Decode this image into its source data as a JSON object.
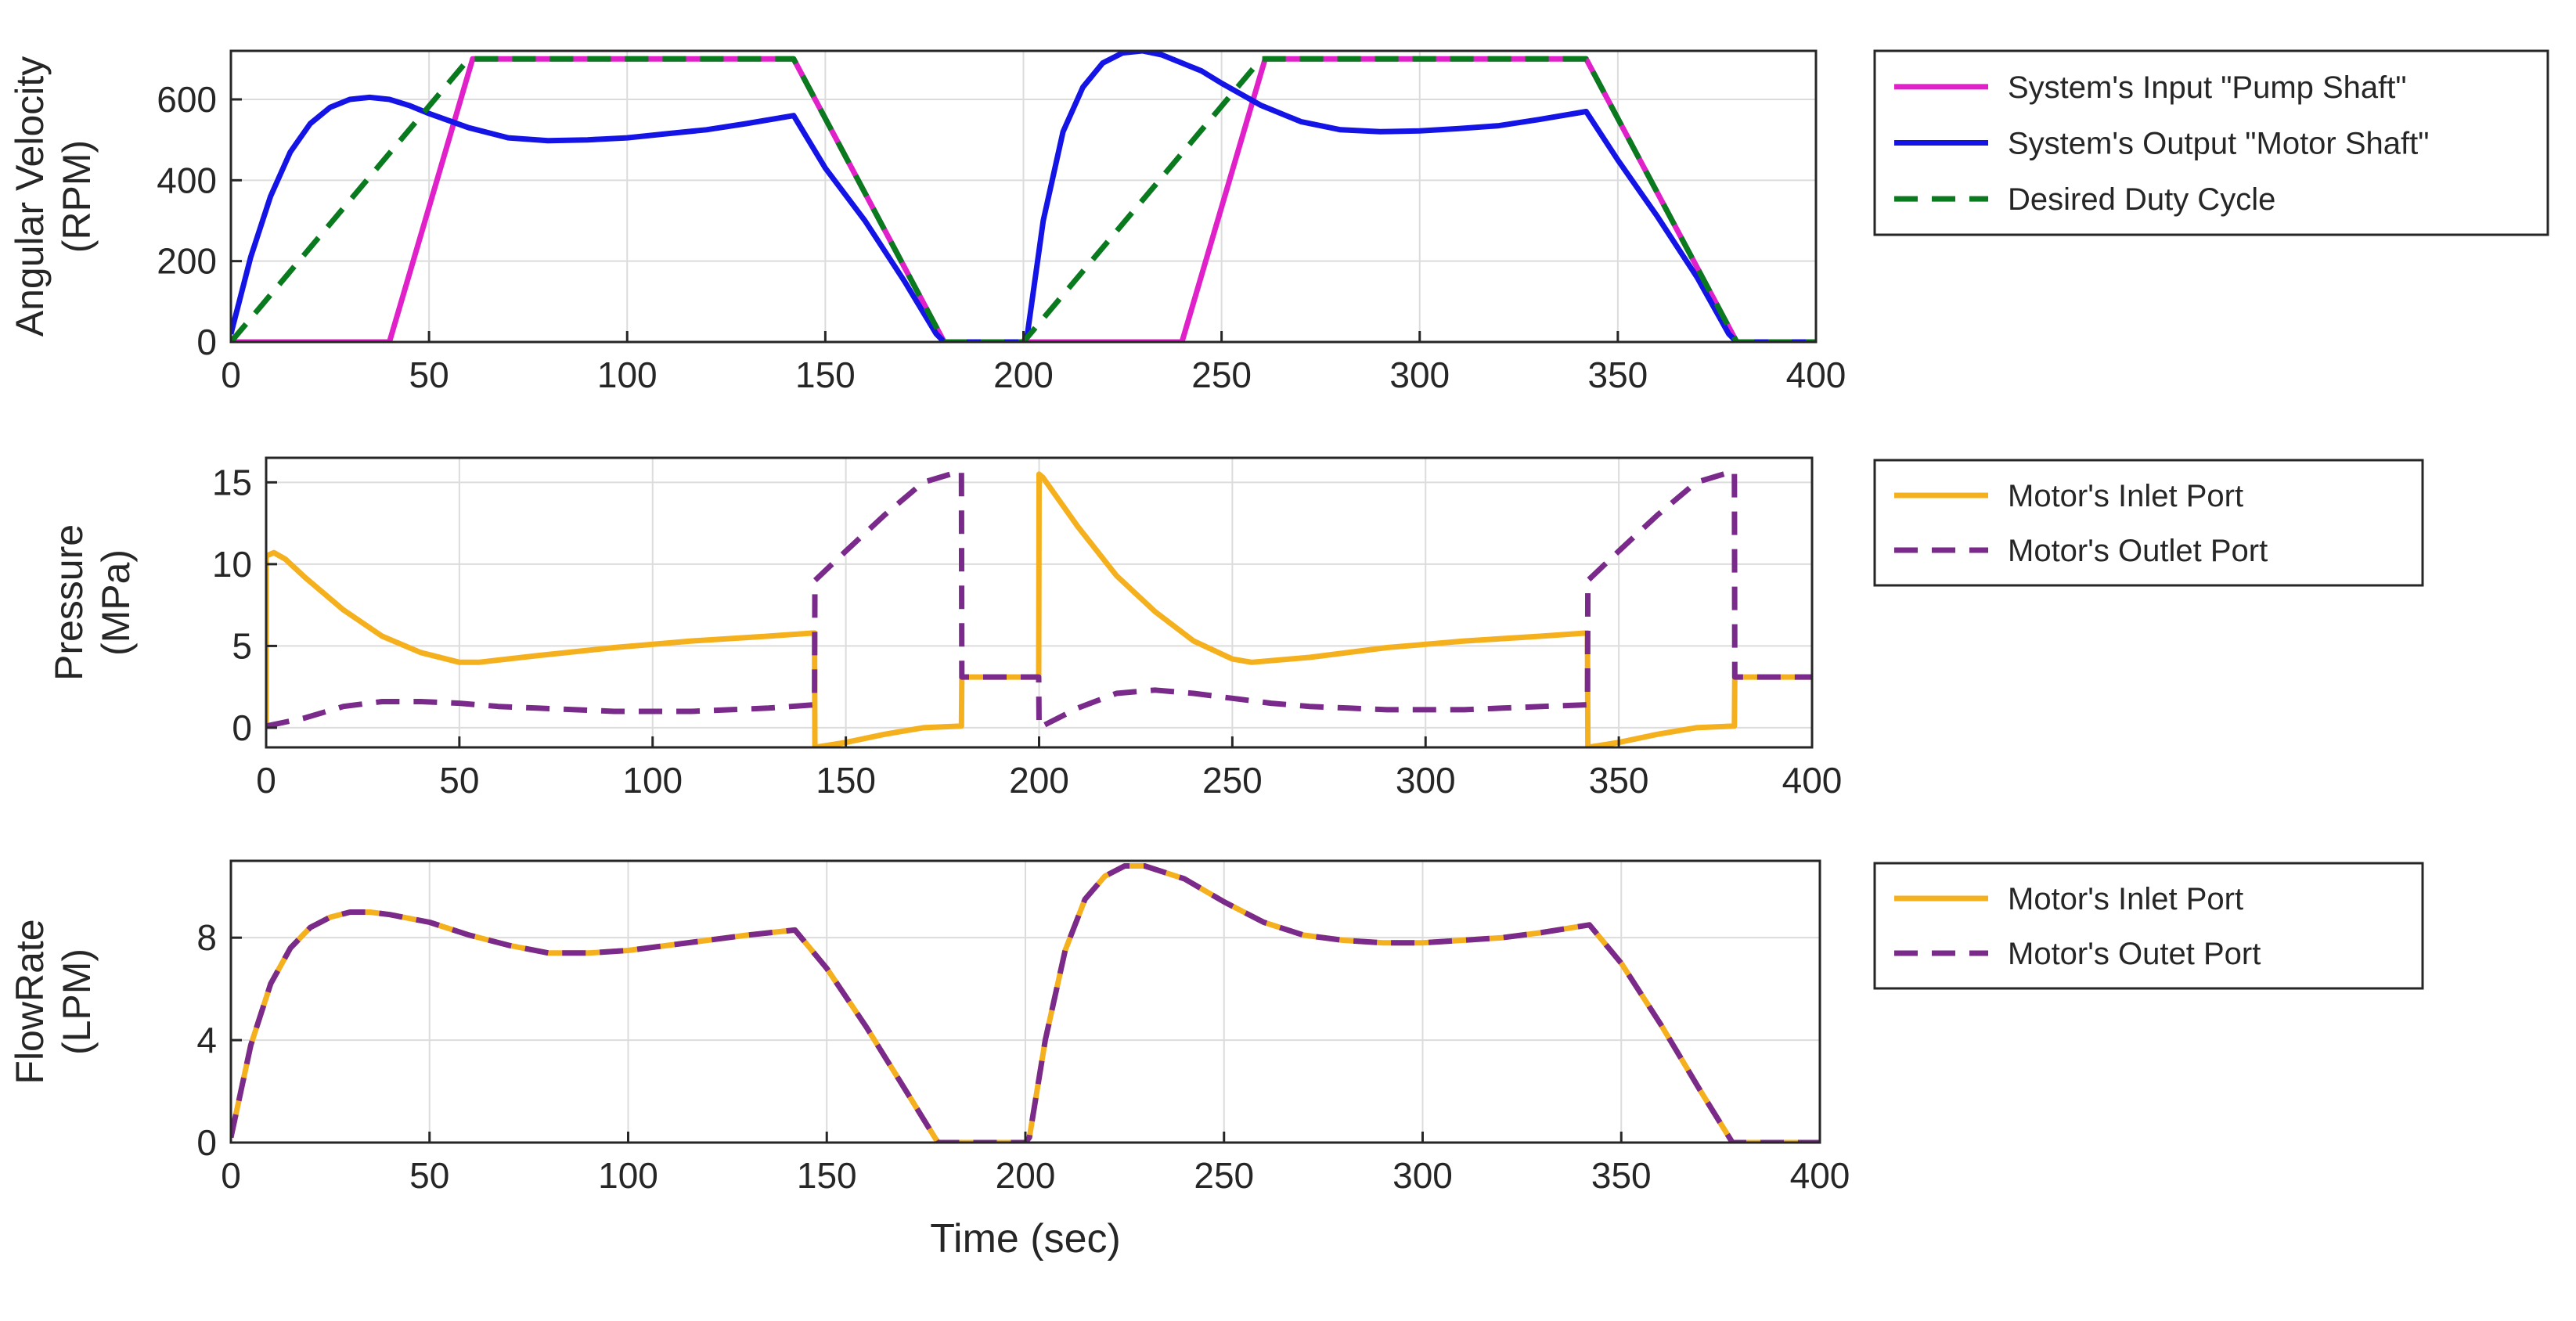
{
  "chart_data": [
    {
      "type": "line",
      "ylabel_line1": "Angular Velocity",
      "ylabel_line2": "(RPM)",
      "xlim": [
        0,
        400
      ],
      "ylim": [
        0,
        720
      ],
      "xticks": [
        0,
        50,
        100,
        150,
        200,
        250,
        300,
        350,
        400
      ],
      "yticks": [
        0,
        200,
        400,
        600
      ],
      "grid": true,
      "legend": "outside-right",
      "series": [
        {
          "name": "System's Input \"Pump Shaft\"",
          "color": "#e020c8",
          "style": "solid",
          "x": [
            0,
            40,
            61,
            142,
            180,
            200,
            240,
            261,
            342,
            380,
            400
          ],
          "y": [
            0,
            0,
            700,
            700,
            0,
            0,
            0,
            700,
            700,
            0,
            0
          ]
        },
        {
          "name": "System's Output \"Motor Shaft\"",
          "color": "#1414e6",
          "style": "solid",
          "x": [
            0,
            5,
            10,
            15,
            20,
            25,
            30,
            35,
            40,
            45,
            50,
            60,
            70,
            80,
            90,
            100,
            110,
            120,
            130,
            142,
            150,
            160,
            170,
            178,
            180,
            190,
            200,
            201,
            205,
            210,
            215,
            220,
            225,
            230,
            235,
            240,
            245,
            250,
            260,
            270,
            280,
            290,
            300,
            310,
            320,
            330,
            342,
            350,
            360,
            370,
            378,
            380,
            390,
            400
          ],
          "y": [
            20,
            210,
            360,
            470,
            540,
            580,
            600,
            605,
            600,
            585,
            565,
            530,
            505,
            498,
            500,
            505,
            515,
            525,
            540,
            560,
            430,
            300,
            150,
            20,
            0,
            0,
            0,
            20,
            300,
            520,
            630,
            690,
            715,
            720,
            710,
            690,
            670,
            640,
            585,
            545,
            525,
            520,
            522,
            528,
            535,
            550,
            570,
            450,
            310,
            160,
            20,
            0,
            0,
            0
          ]
        },
        {
          "name": "Desired Duty Cycle",
          "color": "#0a7a1e",
          "style": "dashed",
          "x": [
            0,
            60,
            142,
            180,
            200,
            260,
            342,
            380,
            400
          ],
          "y": [
            0,
            700,
            700,
            0,
            0,
            700,
            700,
            0,
            0
          ]
        }
      ]
    },
    {
      "type": "line",
      "ylabel_line1": "Pressure",
      "ylabel_line2": "(MPa)",
      "xlim": [
        0,
        400
      ],
      "ylim": [
        -1.2,
        16.5
      ],
      "xticks": [
        0,
        50,
        100,
        150,
        200,
        250,
        300,
        350,
        400
      ],
      "yticks": [
        0,
        5,
        10,
        15
      ],
      "grid": true,
      "legend": "outside-right",
      "series": [
        {
          "name": "Motor's Inlet Port",
          "color": "#f5b01e",
          "style": "solid",
          "x": [
            0,
            0.01,
            2,
            5,
            10,
            20,
            30,
            40,
            50,
            55,
            70,
            90,
            110,
            130,
            141.9,
            142,
            150,
            160,
            170,
            179.9,
            180,
            190,
            199.9,
            200,
            201,
            210,
            220,
            230,
            240,
            250,
            255,
            270,
            290,
            310,
            330,
            341.9,
            342,
            350,
            360,
            370,
            379.9,
            380,
            390,
            400
          ],
          "y": [
            0,
            10.5,
            10.7,
            10.3,
            9.2,
            7.2,
            5.6,
            4.6,
            4.0,
            4.0,
            4.4,
            4.9,
            5.3,
            5.6,
            5.8,
            -1.2,
            -0.9,
            -0.4,
            0.0,
            0.1,
            3.1,
            3.1,
            3.1,
            15.5,
            15.3,
            12.3,
            9.3,
            7.1,
            5.3,
            4.2,
            4.0,
            4.3,
            4.9,
            5.3,
            5.6,
            5.8,
            -1.2,
            -0.9,
            -0.4,
            0.0,
            0.1,
            3.1,
            3.1,
            3.1
          ]
        },
        {
          "name": "Motor's Outlet Port",
          "color": "#7a2a8a",
          "style": "dashed",
          "x": [
            0,
            10,
            20,
            30,
            40,
            50,
            60,
            70,
            80,
            90,
            100,
            110,
            120,
            130,
            141.9,
            142,
            150,
            160,
            170,
            179.9,
            180,
            190,
            199.9,
            200,
            210,
            220,
            230,
            240,
            250,
            260,
            270,
            280,
            290,
            300,
            310,
            320,
            330,
            341.9,
            342,
            350,
            360,
            370,
            379.9,
            380,
            390,
            400
          ],
          "y": [
            0.1,
            0.6,
            1.3,
            1.6,
            1.6,
            1.5,
            1.3,
            1.2,
            1.1,
            1.0,
            1.0,
            1.0,
            1.1,
            1.2,
            1.4,
            9.0,
            10.8,
            13.0,
            15.0,
            15.7,
            3.1,
            3.1,
            3.1,
            0.0,
            1.2,
            2.1,
            2.3,
            2.1,
            1.8,
            1.5,
            1.3,
            1.2,
            1.1,
            1.1,
            1.1,
            1.2,
            1.3,
            1.4,
            9.0,
            10.8,
            13.0,
            15.0,
            15.7,
            3.1,
            3.1,
            3.1
          ]
        }
      ]
    },
    {
      "type": "line",
      "ylabel_line1": "FlowRate",
      "ylabel_line2": "(LPM)",
      "xlabel": "Time (sec)",
      "xlim": [
        0,
        400
      ],
      "ylim": [
        0,
        11
      ],
      "xticks": [
        0,
        50,
        100,
        150,
        200,
        250,
        300,
        350,
        400
      ],
      "yticks": [
        0,
        4,
        8
      ],
      "grid": true,
      "legend": "outside-right",
      "series": [
        {
          "name": "Motor's Inlet Port",
          "color": "#f5b01e",
          "style": "solid",
          "x": [
            0,
            5,
            10,
            15,
            20,
            25,
            30,
            35,
            40,
            50,
            60,
            70,
            80,
            90,
            100,
            110,
            120,
            130,
            142,
            150,
            160,
            170,
            178,
            180,
            190,
            200,
            201,
            205,
            210,
            215,
            220,
            225,
            230,
            240,
            250,
            260,
            270,
            280,
            290,
            300,
            310,
            320,
            330,
            342,
            350,
            360,
            370,
            378,
            380,
            390,
            400
          ],
          "y": [
            0.2,
            3.8,
            6.2,
            7.6,
            8.4,
            8.8,
            9.0,
            9.0,
            8.9,
            8.6,
            8.1,
            7.7,
            7.4,
            7.4,
            7.5,
            7.7,
            7.9,
            8.1,
            8.3,
            6.8,
            4.5,
            2.0,
            0.0,
            0.0,
            0.0,
            0.0,
            0.2,
            4.0,
            7.5,
            9.5,
            10.4,
            10.8,
            10.8,
            10.3,
            9.4,
            8.6,
            8.1,
            7.9,
            7.8,
            7.8,
            7.9,
            8.0,
            8.2,
            8.5,
            7.0,
            4.6,
            2.0,
            0.0,
            0.0,
            0.0,
            0.0
          ]
        },
        {
          "name": "Motor's Outet Port",
          "color": "#7a2a8a",
          "style": "dashed",
          "x": [
            0,
            5,
            10,
            15,
            20,
            25,
            30,
            35,
            40,
            50,
            60,
            70,
            80,
            90,
            100,
            110,
            120,
            130,
            142,
            150,
            160,
            170,
            178,
            180,
            190,
            200,
            201,
            205,
            210,
            215,
            220,
            225,
            230,
            240,
            250,
            260,
            270,
            280,
            290,
            300,
            310,
            320,
            330,
            342,
            350,
            360,
            370,
            378,
            380,
            390,
            400
          ],
          "y": [
            0.2,
            3.8,
            6.2,
            7.6,
            8.4,
            8.8,
            9.0,
            9.0,
            8.9,
            8.6,
            8.1,
            7.7,
            7.4,
            7.4,
            7.5,
            7.7,
            7.9,
            8.1,
            8.3,
            6.8,
            4.5,
            2.0,
            0.0,
            0.0,
            0.0,
            0.0,
            0.2,
            4.0,
            7.5,
            9.5,
            10.4,
            10.8,
            10.8,
            10.3,
            9.4,
            8.6,
            8.1,
            7.9,
            7.8,
            7.8,
            7.9,
            8.0,
            8.2,
            8.5,
            7.0,
            4.6,
            2.0,
            0.0,
            0.0,
            0.0,
            0.0
          ]
        }
      ]
    }
  ]
}
